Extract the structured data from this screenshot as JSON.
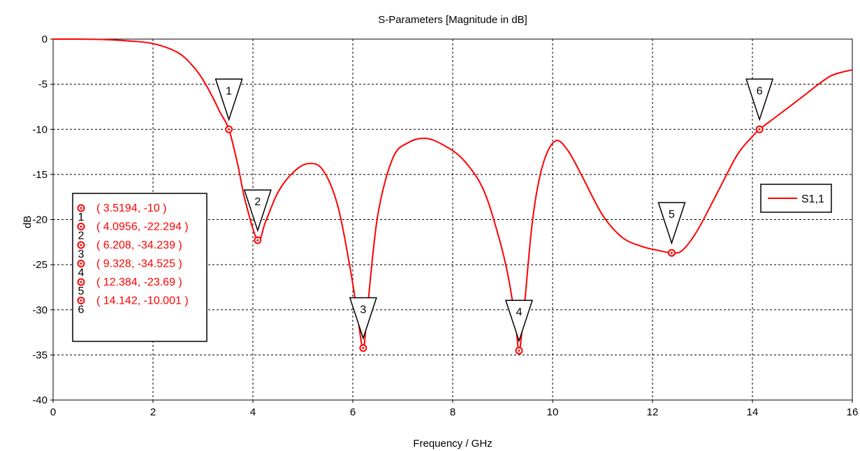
{
  "chart_data": {
    "type": "line",
    "title": "S-Parameters [Magnitude in dB]",
    "xlabel": "Frequency / GHz",
    "ylabel": "dB",
    "xlim": [
      0,
      16
    ],
    "ylim": [
      -40,
      0
    ],
    "xticks": [
      0,
      2,
      4,
      6,
      8,
      10,
      12,
      14,
      16
    ],
    "yticks": [
      0,
      -5,
      -10,
      -15,
      -20,
      -25,
      -30,
      -35,
      -40
    ],
    "grid": true,
    "legend_position": "right",
    "series": [
      {
        "name": "S1,1",
        "color": "#ff0000",
        "x": [
          0,
          0.5,
          1.0,
          1.5,
          2.0,
          2.5,
          2.8,
          3.0,
          3.2,
          3.35,
          3.5194,
          3.7,
          3.85,
          4.0956,
          4.25,
          4.5,
          4.8,
          5.1,
          5.4,
          5.7,
          5.95,
          6.08,
          6.208,
          6.3,
          6.5,
          6.8,
          7.1,
          7.45,
          7.8,
          8.2,
          8.6,
          8.9,
          9.1,
          9.25,
          9.328,
          9.42,
          9.6,
          9.8,
          10.05,
          10.3,
          10.6,
          11.0,
          11.4,
          11.8,
          12.1,
          12.384,
          12.6,
          12.9,
          13.3,
          13.7,
          14.0,
          14.142,
          14.5,
          15.0,
          15.3,
          15.6,
          16.0
        ],
        "y": [
          0,
          0,
          -0.05,
          -0.2,
          -0.5,
          -1.5,
          -3.0,
          -4.5,
          -6.5,
          -8.2,
          -10,
          -14,
          -18,
          -22.294,
          -20.3,
          -17.0,
          -14.8,
          -13.8,
          -14.5,
          -18.5,
          -25.5,
          -30.0,
          -34.239,
          -29.5,
          -19.5,
          -13.2,
          -11.5,
          -11.0,
          -11.7,
          -13.3,
          -16.5,
          -21.5,
          -26.0,
          -31.0,
          -34.525,
          -30.5,
          -20.0,
          -14.0,
          -11.3,
          -12.3,
          -15.3,
          -19.5,
          -22.0,
          -23.0,
          -23.4,
          -23.69,
          -23.4,
          -21.2,
          -17.0,
          -12.8,
          -10.8,
          -10.001,
          -8.5,
          -6.4,
          -5.1,
          -4.0,
          -3.4
        ]
      }
    ],
    "markers": [
      {
        "id": "1",
        "x": 3.5194,
        "y": -10,
        "label": "( 3.5194, -10 )"
      },
      {
        "id": "2",
        "x": 4.0956,
        "y": -22.294,
        "label": "( 4.0956, -22.294 )"
      },
      {
        "id": "3",
        "x": 6.208,
        "y": -34.239,
        "label": "( 6.208, -34.239 )"
      },
      {
        "id": "4",
        "x": 9.328,
        "y": -34.525,
        "label": "( 9.328, -34.525 )"
      },
      {
        "id": "5",
        "x": 12.384,
        "y": -23.69,
        "label": "( 12.384, -23.69 )"
      },
      {
        "id": "6",
        "x": 14.142,
        "y": -10.001,
        "label": "( 14.142, -10.001 )"
      }
    ]
  }
}
